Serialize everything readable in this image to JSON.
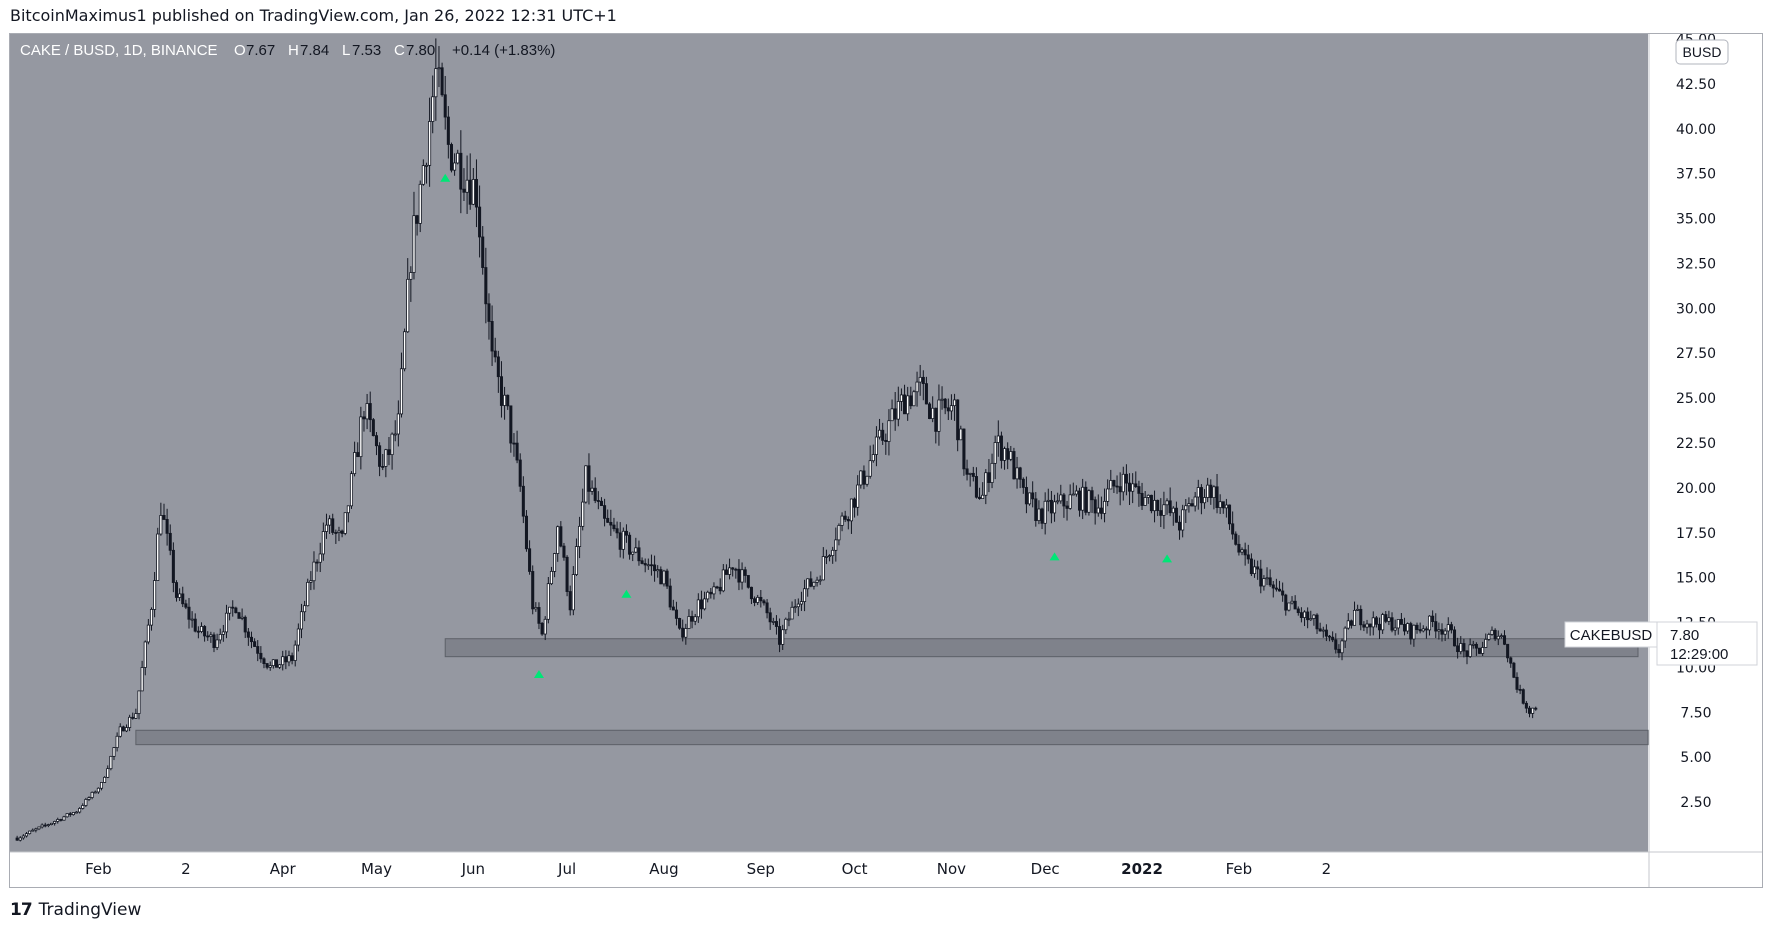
{
  "header": {
    "publisher": "BitcoinMaximus1 published on TradingView.com, Jan 26, 2022 12:31 UTC+1"
  },
  "footer": {
    "logo_glyph": "17",
    "brand": "TradingView"
  },
  "colors": {
    "plot_background": "#9598a1",
    "candle": "#131722",
    "support_zone": "#7f828b",
    "marker": "#00e676",
    "axis_text": "#131722"
  },
  "chart_data": {
    "type": "candlestick",
    "symbol_line": {
      "pair": "CAKE / BUSD, 1D, BINANCE",
      "o_label": "O",
      "o_value": "7.67",
      "h_label": "H",
      "h_value": "7.84",
      "l_label": "L",
      "l_value": "7.53",
      "c_label": "C",
      "c_value": "7.80",
      "change": "+0.14 (+1.83%)"
    },
    "currency_badge": "BUSD",
    "price_axis": {
      "ticks": [
        "2.50",
        "5.00",
        "7.50",
        "10.00",
        "12.50",
        "15.00",
        "17.50",
        "20.00",
        "22.50",
        "25.00",
        "27.50",
        "30.00",
        "32.50",
        "35.00",
        "37.50",
        "40.00",
        "42.50",
        "45.00"
      ],
      "range": [
        0,
        45
      ]
    },
    "time_axis": {
      "ticks": [
        "Feb",
        "2",
        "Apr",
        "May",
        "Jun",
        "Jul",
        "Aug",
        "Sep",
        "Oct",
        "Nov",
        "Dec",
        "2022",
        "Feb",
        "2"
      ],
      "bold": [
        "2022"
      ]
    },
    "price_label": {
      "symbol": "CAKEBUSD",
      "price": "7.80",
      "countdown": "12:29:00"
    },
    "support_zones": [
      {
        "low": 10.6,
        "high": 11.6
      },
      {
        "low": 5.7,
        "high": 6.5
      }
    ],
    "bounce_markers": [
      "2021-05-23",
      "2021-06-22",
      "2021-07-20",
      "2021-12-04",
      "2022-01-09"
    ],
    "anchors": [
      [
        "2021-01-06",
        0.5
      ],
      [
        "2021-01-15",
        1.2
      ],
      [
        "2021-01-25",
        2.0
      ],
      [
        "2021-02-02",
        3.5
      ],
      [
        "2021-02-08",
        6.5
      ],
      [
        "2021-02-13",
        7.5
      ],
      [
        "2021-02-18",
        13.5
      ],
      [
        "2021-02-21",
        19.0
      ],
      [
        "2021-02-26",
        14.0
      ],
      [
        "2021-03-05",
        12.0
      ],
      [
        "2021-03-10",
        11.5
      ],
      [
        "2021-03-17",
        13.5
      ],
      [
        "2021-03-22",
        11.5
      ],
      [
        "2021-03-28",
        10.0
      ],
      [
        "2021-04-04",
        10.5
      ],
      [
        "2021-04-10",
        15.0
      ],
      [
        "2021-04-15",
        18.0
      ],
      [
        "2021-04-20",
        17.0
      ],
      [
        "2021-04-27",
        24.5
      ],
      [
        "2021-05-03",
        21.0
      ],
      [
        "2021-05-08",
        23.5
      ],
      [
        "2021-05-12",
        33.0
      ],
      [
        "2021-05-16",
        38.0
      ],
      [
        "2021-05-20",
        43.0
      ],
      [
        "2021-05-24",
        39.0
      ],
      [
        "2021-05-28",
        38.0
      ],
      [
        "2021-06-02",
        36.5
      ],
      [
        "2021-06-07",
        27.0
      ],
      [
        "2021-06-12",
        24.0
      ],
      [
        "2021-06-16",
        20.0
      ],
      [
        "2021-06-20",
        13.5
      ],
      [
        "2021-06-23",
        11.8
      ],
      [
        "2021-06-28",
        18.0
      ],
      [
        "2021-07-02",
        13.5
      ],
      [
        "2021-07-07",
        20.5
      ],
      [
        "2021-07-13",
        18.0
      ],
      [
        "2021-07-19",
        17.0
      ],
      [
        "2021-07-25",
        16.0
      ],
      [
        "2021-08-01",
        15.0
      ],
      [
        "2021-08-06",
        11.8
      ],
      [
        "2021-08-12",
        13.5
      ],
      [
        "2021-08-17",
        14.0
      ],
      [
        "2021-08-23",
        15.8
      ],
      [
        "2021-08-28",
        14.5
      ],
      [
        "2021-09-03",
        13.0
      ],
      [
        "2021-09-07",
        11.5
      ],
      [
        "2021-09-13",
        14.0
      ],
      [
        "2021-09-19",
        15.0
      ],
      [
        "2021-09-25",
        17.5
      ],
      [
        "2021-10-01",
        19.5
      ],
      [
        "2021-10-06",
        21.5
      ],
      [
        "2021-10-12",
        23.5
      ],
      [
        "2021-10-17",
        25.0
      ],
      [
        "2021-10-22",
        25.5
      ],
      [
        "2021-10-27",
        24.0
      ],
      [
        "2021-11-02",
        24.5
      ],
      [
        "2021-11-06",
        20.5
      ],
      [
        "2021-11-11",
        19.5
      ],
      [
        "2021-11-15",
        22.5
      ],
      [
        "2021-11-19",
        22.0
      ],
      [
        "2021-11-24",
        19.5
      ],
      [
        "2021-11-29",
        18.5
      ],
      [
        "2021-12-05",
        19.0
      ],
      [
        "2021-12-11",
        19.5
      ],
      [
        "2021-12-18",
        19.0
      ],
      [
        "2021-12-25",
        20.5
      ],
      [
        "2022-01-01",
        19.5
      ],
      [
        "2022-01-08",
        19.0
      ],
      [
        "2022-01-13",
        18.0
      ],
      [
        "2022-01-18",
        19.5
      ],
      [
        "2022-01-23",
        20.0
      ],
      [
        "2022-01-28",
        18.5
      ],
      [
        "2022-02-02",
        16.0
      ],
      [
        "2022-02-08",
        15.0
      ],
      [
        "2022-02-14",
        14.0
      ],
      [
        "2022-02-20",
        13.0
      ],
      [
        "2022-02-25",
        12.5
      ],
      [
        "2022-03-01",
        11.5
      ],
      [
        "2022-03-05",
        11.0
      ],
      [
        "2022-03-10",
        13.0
      ],
      [
        "2022-03-15",
        12.5
      ],
      [
        "2022-03-22",
        12.5
      ],
      [
        "2022-03-28",
        12.0
      ],
      [
        "2022-04-04",
        12.5
      ],
      [
        "2022-04-09",
        12.0
      ],
      [
        "2022-04-14",
        10.8
      ],
      [
        "2022-04-19",
        11.0
      ],
      [
        "2022-04-24",
        12.0
      ],
      [
        "2022-04-27",
        11.5
      ],
      [
        "2022-04-30",
        9.5
      ],
      [
        "2022-05-02",
        8.5
      ],
      [
        "2022-05-05",
        7.6
      ],
      [
        "2022-05-07",
        7.8
      ]
    ]
  }
}
